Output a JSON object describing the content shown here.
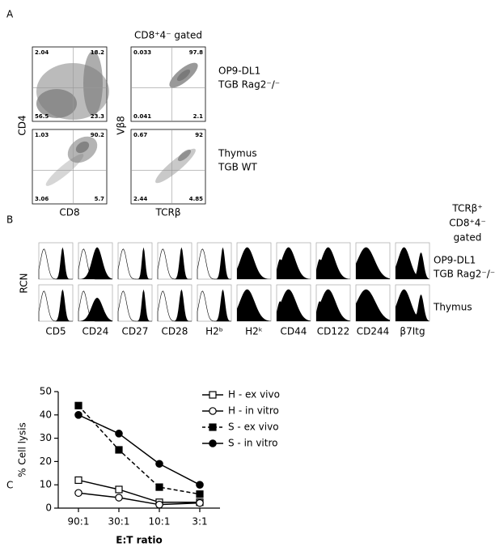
{
  "panel_a": {
    "label": "A",
    "gate_label": "CD8⁺4⁻ gated",
    "x_labels": [
      "CD8",
      "TCRβ"
    ],
    "y_labels": [
      "CD4",
      "Vβ8"
    ],
    "rows": [
      {
        "lines": [
          "OP9-DL1",
          "TGB Rag2⁻/⁻"
        ],
        "quadrants": [
          [
            "2.04",
            "18.2",
            "56.5",
            "23.3"
          ],
          [
            "0.033",
            "97.8",
            "0.041",
            "2.1"
          ]
        ]
      },
      {
        "lines": [
          "Thymus",
          "TGB WT"
        ],
        "quadrants": [
          [
            "1.03",
            "90.2",
            "3.06",
            "5.7"
          ],
          [
            "0.67",
            "92",
            "2.44",
            "4.85"
          ]
        ]
      }
    ]
  },
  "panel_b": {
    "label": "B",
    "gate_label": [
      "TCRβ⁺",
      "CD8⁺4⁻",
      "gated"
    ],
    "y_label": "RCN",
    "markers": [
      "CD5",
      "CD24",
      "CD27",
      "CD28",
      "H2ᵇ",
      "H2ᵏ",
      "CD44",
      "CD122",
      "CD244",
      "β7Itg"
    ],
    "rows": [
      [
        "OP9-DL1",
        "TGB Rag2⁻/⁻"
      ],
      [
        "Thymus"
      ]
    ]
  },
  "chart_data": {
    "type": "line",
    "label": "C",
    "y_label": "% Cell lysis",
    "x_label": "E:T ratio",
    "categories": [
      "90:1",
      "30:1",
      "10:1",
      "3:1"
    ],
    "ylim": [
      0,
      50
    ],
    "yticks": [
      0,
      10,
      20,
      30,
      40,
      50
    ],
    "series": [
      {
        "name": "H - ex vivo",
        "color": "#000000",
        "marker": "square",
        "filled": false,
        "dashed": false,
        "values": [
          12,
          8,
          2.5,
          2.5
        ]
      },
      {
        "name": "H - in vitro",
        "color": "#000000",
        "marker": "circle",
        "filled": false,
        "dashed": false,
        "values": [
          6.5,
          4.5,
          1.5,
          2.2
        ]
      },
      {
        "name": "S - ex vivo",
        "color": "#000000",
        "marker": "square",
        "filled": true,
        "dashed": true,
        "values": [
          44,
          25,
          9,
          6
        ]
      },
      {
        "name": "S - in vitro",
        "color": "#000000",
        "marker": "circle",
        "filled": true,
        "dashed": false,
        "values": [
          40,
          32,
          19,
          10
        ]
      }
    ]
  }
}
